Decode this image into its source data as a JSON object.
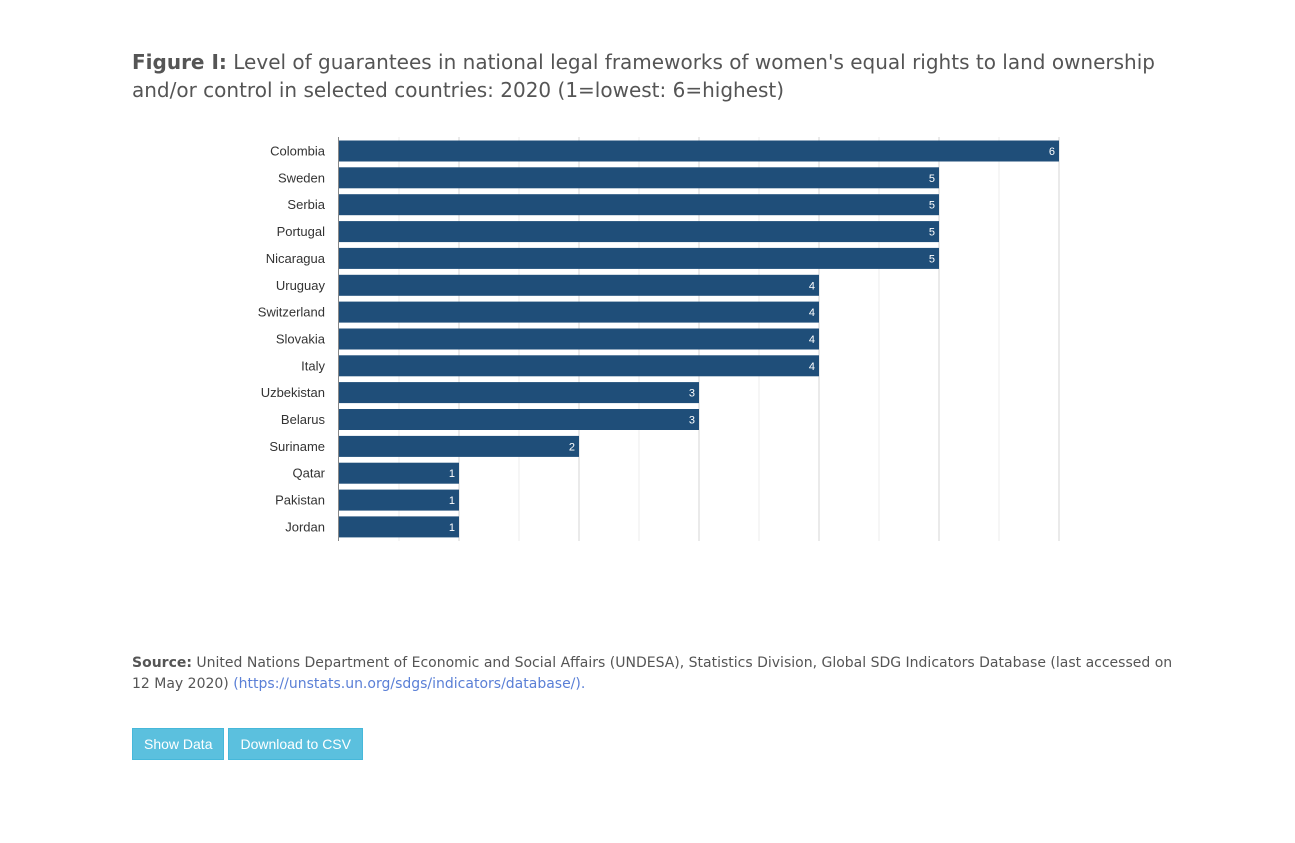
{
  "figure": {
    "label": "Figure I:",
    "title": "Level of guarantees in national legal frameworks of women's equal rights to land ownership and/or control in selected countries: 2020 (1=lowest: 6=highest)"
  },
  "chart_data": {
    "type": "bar",
    "orientation": "horizontal",
    "categories": [
      "Colombia",
      "Sweden",
      "Serbia",
      "Portugal",
      "Nicaragua",
      "Uruguay",
      "Switzerland",
      "Slovakia",
      "Italy",
      "Uzbekistan",
      "Belarus",
      "Suriname",
      "Qatar",
      "Pakistan",
      "Jordan"
    ],
    "values": [
      6,
      5,
      5,
      5,
      5,
      4,
      4,
      4,
      4,
      3,
      3,
      2,
      1,
      1,
      1
    ],
    "title": "",
    "xlabel": "",
    "ylabel": "",
    "xlim": [
      0,
      6
    ],
    "grid": true,
    "legend": "none",
    "data_labels": true,
    "bar_color": "#1f4e79",
    "label_color": "#ffffff"
  },
  "source": {
    "label": "Source:",
    "text": "United Nations Department of Economic and Social Affairs (UNDESA), Statistics Division, Global SDG Indicators Database (last accessed on 12 May 2020)",
    "link_text": "(https://unstats.un.org/sdgs/indicators/database/)."
  },
  "buttons": {
    "show_data": "Show Data",
    "download_csv": "Download to CSV"
  },
  "colors": {
    "bar": "#1f4e79",
    "button": "#5bc0de",
    "link": "#5a7fd6",
    "text": "#555555"
  }
}
